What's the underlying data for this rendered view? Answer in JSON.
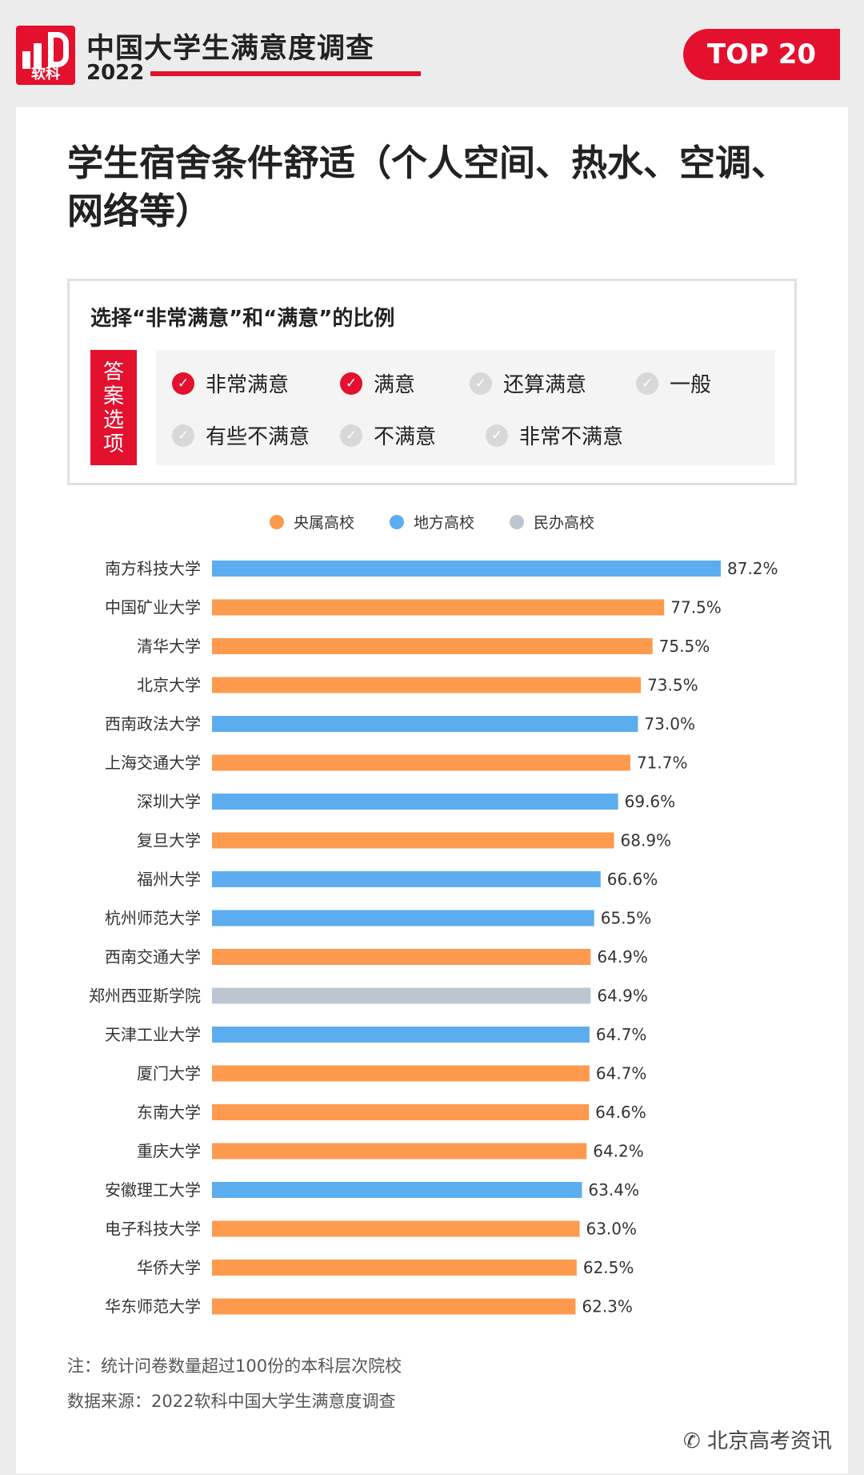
{
  "header": {
    "logo_text": "软科",
    "survey_title": "中国大学生满意度调查",
    "year": "2022",
    "badge": "TOP 20"
  },
  "colors": {
    "brand_red": "#e3102e",
    "central": "#fd9a4e",
    "local": "#5badef",
    "private": "#bcc6d0"
  },
  "main_title": "学生宿舍条件舒适（个人空间、热水、空调、网络等）",
  "answers": {
    "question": "选择“非常满意”和“满意”的比例",
    "tag": [
      "答",
      "案",
      "选",
      "项"
    ],
    "options": [
      {
        "label": "非常满意",
        "selected": true
      },
      {
        "label": "满意",
        "selected": true
      },
      {
        "label": "还算满意",
        "selected": false
      },
      {
        "label": "一般",
        "selected": false
      },
      {
        "label": "有些不满意",
        "selected": false
      },
      {
        "label": "不满意",
        "selected": false
      },
      {
        "label": "非常不满意",
        "selected": false
      }
    ]
  },
  "legend": [
    {
      "key": "central",
      "label": "央属高校"
    },
    {
      "key": "local",
      "label": "地方高校"
    },
    {
      "key": "private",
      "label": "民办高校"
    }
  ],
  "chart_data": {
    "type": "bar",
    "orientation": "horizontal",
    "value_suffix": "%",
    "categories": [
      "南方科技大学",
      "中国矿业大学",
      "清华大学",
      "北京大学",
      "西南政法大学",
      "上海交通大学",
      "深圳大学",
      "复旦大学",
      "福州大学",
      "杭州师范大学",
      "西南交通大学",
      "郑州西亚斯学院",
      "天津工业大学",
      "厦门大学",
      "东南大学",
      "重庆大学",
      "安徽理工大学",
      "电子科技大学",
      "华侨大学",
      "华东师范大学"
    ],
    "values": [
      87.2,
      77.5,
      75.5,
      73.5,
      73.0,
      71.7,
      69.6,
      68.9,
      66.6,
      65.5,
      64.9,
      64.9,
      64.7,
      64.7,
      64.6,
      64.2,
      63.4,
      63.0,
      62.5,
      62.3
    ],
    "value_labels": [
      "87.2%",
      "77.5%",
      "75.5%",
      "73.5%",
      "73.0%",
      "71.7%",
      "69.6%",
      "68.9%",
      "66.6%",
      "65.5%",
      "64.9%",
      "64.9%",
      "64.7%",
      "64.7%",
      "64.6%",
      "64.2%",
      "63.4%",
      "63.0%",
      "62.5%",
      "62.3%"
    ],
    "groups": [
      "local",
      "central",
      "central",
      "central",
      "local",
      "central",
      "local",
      "central",
      "local",
      "local",
      "central",
      "private",
      "local",
      "central",
      "central",
      "central",
      "local",
      "central",
      "central",
      "central"
    ],
    "legend_position": "top",
    "grid": false
  },
  "notes": {
    "note": "注：统计问卷数量超过100份的本科层次院校",
    "source": "数据来源：2022软科中国大学生满意度调查"
  },
  "watermark": "北京高考资讯"
}
